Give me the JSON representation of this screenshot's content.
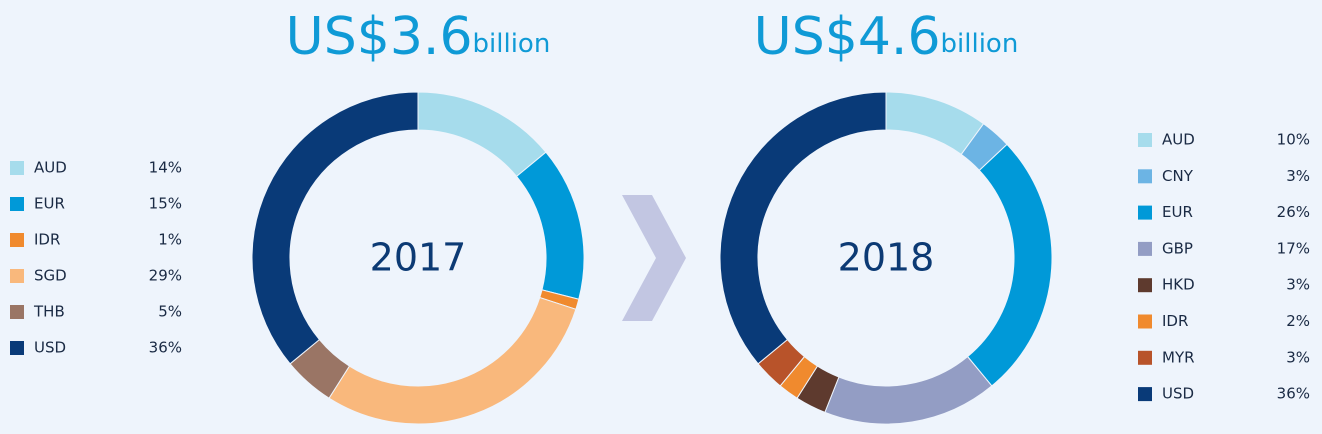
{
  "chart_data": [
    {
      "type": "donut",
      "title": "US$3.6",
      "title_unit": "billion",
      "center_label": "2017",
      "legend_position": "left",
      "categories": [
        "AUD",
        "EUR",
        "IDR",
        "SGD",
        "THB",
        "USD"
      ],
      "values": [
        14,
        15,
        1,
        29,
        5,
        36
      ],
      "value_labels": [
        "14%",
        "15%",
        "1%",
        "29%",
        "5%",
        "36%"
      ],
      "colors": [
        "#a6dcec",
        "#0099d8",
        "#f08a2e",
        "#f9b87c",
        "#9a7565",
        "#093a78"
      ]
    },
    {
      "type": "donut",
      "title": "US$4.6",
      "title_unit": "billion",
      "center_label": "2018",
      "legend_position": "right",
      "categories": [
        "AUD",
        "CNY",
        "EUR",
        "GBP",
        "HKD",
        "IDR",
        "MYR",
        "USD"
      ],
      "values": [
        10,
        3,
        26,
        17,
        3,
        2,
        3,
        36
      ],
      "value_labels": [
        "10%",
        "3%",
        "26%",
        "17%",
        "3%",
        "2%",
        "3%",
        "36%"
      ],
      "colors": [
        "#a6dcec",
        "#6cb4e4",
        "#0099d8",
        "#939dc4",
        "#5e3a2e",
        "#f08a2e",
        "#b8532a",
        "#093a78"
      ]
    }
  ]
}
